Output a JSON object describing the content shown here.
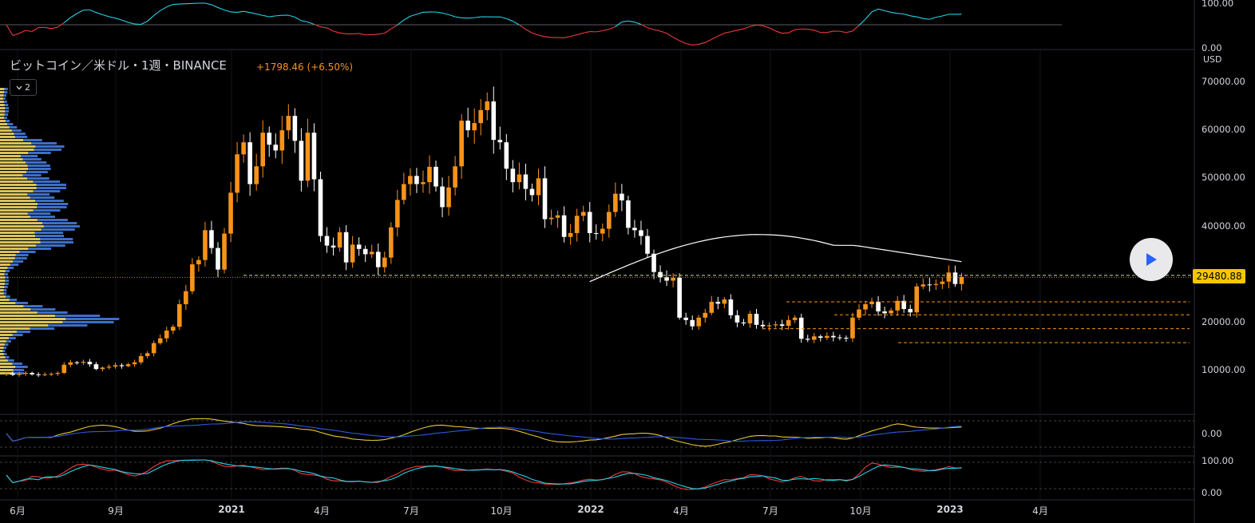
{
  "header": {
    "title": "ビットコイン／米ドル・1週・BINANCE",
    "change": "+1798.46 (+6.50%)",
    "collapse_count": "2",
    "currency": "USD"
  },
  "price_tag": "29480.88",
  "colors": {
    "up": "#f7931a",
    "down": "#ffffff",
    "volume_blue": "#3d6fc6",
    "volume_yellow": "#d8c25a",
    "ma": "#ffffff",
    "cyan": "#22d3e6",
    "red": "#ef3b3b",
    "yellow_line": "#e6c930",
    "blue_line": "#2f5ae0"
  },
  "icons": {
    "play": "play-icon",
    "collapse": "chevron-down-icon"
  },
  "chart_data": {
    "type": "candlestick",
    "y_ticks": [
      "70000.00",
      "60000.00",
      "50000.00",
      "40000.00",
      "30000.00",
      "20000.00",
      "10000.00"
    ],
    "ylim": [
      0,
      75000
    ],
    "x_labels": [
      {
        "label": "6月",
        "bold": false
      },
      {
        "label": "9月",
        "bold": false
      },
      {
        "label": "2021",
        "bold": true
      },
      {
        "label": "4月",
        "bold": false
      },
      {
        "label": "7月",
        "bold": false
      },
      {
        "label": "10月",
        "bold": false
      },
      {
        "label": "2022",
        "bold": true
      },
      {
        "label": "4月",
        "bold": false
      },
      {
        "label": "7月",
        "bold": false
      },
      {
        "label": "10月",
        "bold": false
      },
      {
        "label": "2023",
        "bold": true
      },
      {
        "label": "4月",
        "bold": false
      }
    ],
    "closes": [
      9400,
      9100,
      9300,
      9500,
      9200,
      9100,
      9200,
      9300,
      9500,
      11200,
      11700,
      11600,
      11800,
      11300,
      10300,
      10600,
      10800,
      11100,
      10900,
      11300,
      11700,
      13000,
      13600,
      15700,
      16700,
      18300,
      19100,
      23800,
      26500,
      32100,
      33000,
      39200,
      35500,
      31000,
      38500,
      47000,
      55000,
      57500,
      48800,
      52500,
      59500,
      57000,
      55800,
      60000,
      63000,
      57800,
      49500,
      59500,
      49800,
      38000,
      36000,
      35600,
      38800,
      32500,
      36200,
      35300,
      34200,
      34700,
      31500,
      33500,
      39800,
      45500,
      48800,
      50500,
      48800,
      49200,
      52400,
      48300,
      44000,
      48100,
      52500,
      62000,
      60000,
      61500,
      64200,
      66000,
      58000,
      57500,
      52000,
      49200,
      50800,
      47800,
      46500,
      50000,
      41500,
      41800,
      42300,
      37800,
      38600,
      42200,
      43000,
      38600,
      38500,
      39500,
      43000,
      46800,
      45400,
      39700,
      39200,
      38000,
      34300,
      30500,
      29400,
      28700,
      29300,
      21000,
      20500,
      19200,
      21000,
      22000,
      24300,
      23900,
      24800,
      21500,
      20000,
      19800,
      21800,
      19500,
      19200,
      19400,
      19600,
      19300,
      20500,
      21000,
      16600,
      16400,
      17100,
      16800,
      17200,
      16900,
      16800,
      16700,
      21000,
      22700,
      23800,
      24300,
      22300,
      21900,
      22500,
      24500,
      22800,
      22100,
      27500,
      27900,
      27800,
      28000,
      28500,
      30400,
      28000,
      29480
    ]
  }
}
